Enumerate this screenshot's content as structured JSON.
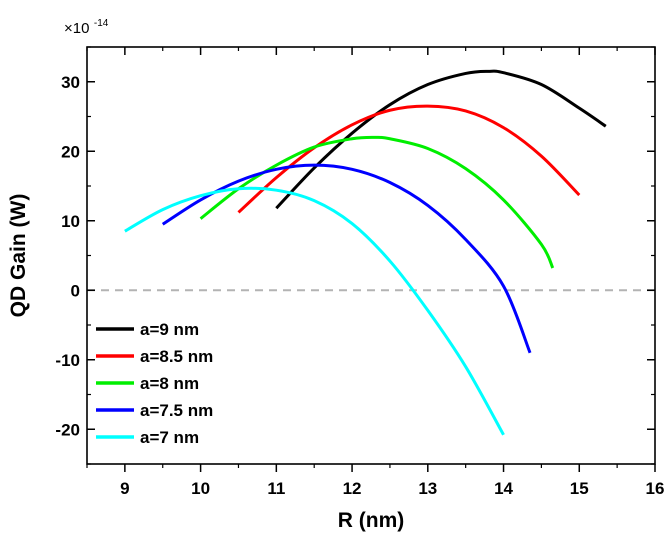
{
  "chart_data": {
    "type": "line",
    "title": "",
    "xlabel": "R (nm)",
    "ylabel": "QD Gain (W)",
    "y_multiplier": {
      "base": "×10",
      "exponent": "-14"
    },
    "xlim": [
      8.5,
      16
    ],
    "ylim": [
      -25,
      35
    ],
    "x_ticks": [
      9,
      10,
      11,
      12,
      13,
      14,
      15,
      16
    ],
    "x_tick_labels": [
      "9",
      "10",
      "11",
      "12",
      "13",
      "14",
      "15",
      "16"
    ],
    "y_ticks": [
      -20,
      -10,
      0,
      10,
      20,
      30
    ],
    "y_tick_labels": [
      "-20",
      "-10",
      "0",
      "10",
      "20",
      "30"
    ],
    "grid": false,
    "zero_line": {
      "y": 0,
      "style": "dashed",
      "color": "#b3b3b3"
    },
    "legend_position": "lower-left",
    "series": [
      {
        "name": "a=9 nm",
        "color": "#000000",
        "x": [
          11.0,
          11.5,
          12.0,
          12.5,
          13.0,
          13.5,
          13.8,
          14.0,
          14.5,
          15.0,
          15.35
        ],
        "y": [
          11.8,
          17.6,
          22.6,
          26.7,
          29.6,
          31.2,
          31.5,
          31.3,
          29.6,
          26.2,
          23.6
        ]
      },
      {
        "name": "a=8.5 nm",
        "color": "#ff0000",
        "x": [
          10.5,
          11.0,
          11.5,
          12.0,
          12.5,
          13.0,
          13.5,
          14.0,
          14.5,
          15.0
        ],
        "y": [
          11.2,
          16.2,
          20.5,
          23.8,
          25.9,
          26.5,
          25.8,
          23.4,
          19.3,
          13.7
        ]
      },
      {
        "name": "a=8 nm",
        "color": "#00ee00",
        "x": [
          10.0,
          10.5,
          11.0,
          11.5,
          12.0,
          12.3,
          12.5,
          13.0,
          13.5,
          14.0,
          14.5,
          14.65
        ],
        "y": [
          10.3,
          14.6,
          18.0,
          20.6,
          21.8,
          22.0,
          21.8,
          20.4,
          17.5,
          13.0,
          6.6,
          3.2
        ]
      },
      {
        "name": "a=7.5 nm",
        "color": "#0000ff",
        "x": [
          9.5,
          10.0,
          10.5,
          11.0,
          11.5,
          12.0,
          12.5,
          13.0,
          13.5,
          14.0,
          14.35
        ],
        "y": [
          9.5,
          13.0,
          15.7,
          17.4,
          18.0,
          17.4,
          15.5,
          12.2,
          7.3,
          0.6,
          -9.0
        ]
      },
      {
        "name": "a=7 nm",
        "color": "#00ffff",
        "x": [
          9.0,
          9.5,
          10.0,
          10.5,
          11.0,
          11.5,
          12.0,
          12.5,
          13.0,
          13.5,
          14.0
        ],
        "y": [
          8.5,
          11.6,
          13.6,
          14.6,
          14.4,
          12.9,
          9.6,
          4.2,
          -2.9,
          -11.0,
          -20.8
        ]
      }
    ]
  }
}
